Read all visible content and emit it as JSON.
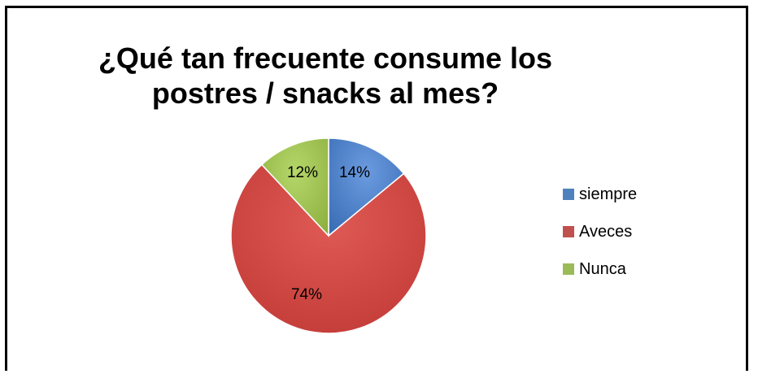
{
  "chart_data": {
    "type": "pie",
    "title": "¿Qué tan frecuente consume los postres / snacks al mes?",
    "title_lines": [
      "¿Qué tan frecuente consume los",
      "postres / snacks al mes?"
    ],
    "categories": [
      "siempre",
      "Aveces",
      "Nunca"
    ],
    "values": [
      14,
      74,
      12
    ],
    "labels": [
      "14%",
      "74%",
      "12%"
    ],
    "colors": [
      "#4f81bd",
      "#c0504d",
      "#9bbb59"
    ],
    "legend_position": "right"
  }
}
